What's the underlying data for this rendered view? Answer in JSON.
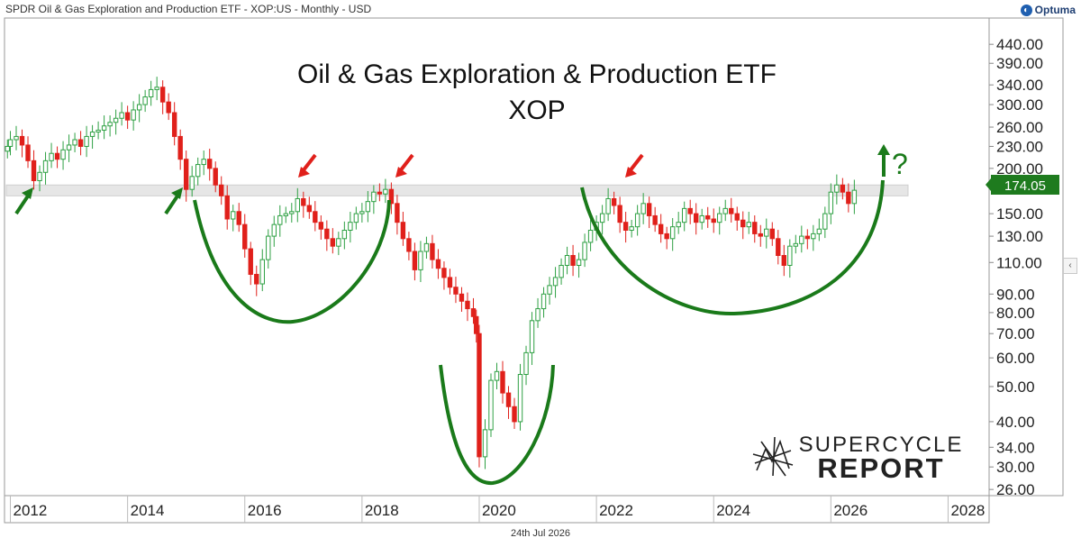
{
  "header": {
    "instrument": "SPDR Oil & Gas Exploration and Production ETF - XOP:US - Monthly - USD",
    "logo": "Optuma",
    "logo_icon": "optuma-logo-icon"
  },
  "footer": {
    "date": "24th Jul 2026"
  },
  "watermark": {
    "line1": "SUPERCYCLE",
    "line2": "REPORT"
  },
  "colors": {
    "up": "#2ea043",
    "down": "#e0201b",
    "annotation": "#1a7a1a",
    "arrow_red": "#e0201b",
    "price_box": "#1e7b1e"
  },
  "chart_data": {
    "type": "candlestick",
    "title": "Oil & Gas Exploration & Production ETF",
    "subtitle": "XOP",
    "scale": "log",
    "ylim": [
      25,
      520
    ],
    "xlim": [
      2011.9,
      2028.7
    ],
    "x_ticks": [
      "2012",
      "2014",
      "2016",
      "2018",
      "2020",
      "2022",
      "2024",
      "2026",
      "2028"
    ],
    "y_ticks": [
      "440.00",
      "390.00",
      "340.00",
      "300.00",
      "260.00",
      "230.00",
      "200.00",
      "174.05",
      "150.00",
      "130.00",
      "110.00",
      "90.00",
      "80.00",
      "70.00",
      "60.00",
      "50.00",
      "40.00",
      "34.00",
      "30.00",
      "26.00"
    ],
    "last_price": "174.05",
    "resistance_band": [
      168,
      180
    ],
    "annotation": "?",
    "series_close": [
      [
        2011.95,
        230
      ],
      [
        2012.0,
        240
      ],
      [
        2012.1,
        245
      ],
      [
        2012.2,
        232
      ],
      [
        2012.3,
        210
      ],
      [
        2012.4,
        185
      ],
      [
        2012.5,
        195
      ],
      [
        2012.6,
        210
      ],
      [
        2012.7,
        220
      ],
      [
        2012.8,
        212
      ],
      [
        2012.9,
        225
      ],
      [
        2013.0,
        232
      ],
      [
        2013.1,
        240
      ],
      [
        2013.2,
        230
      ],
      [
        2013.3,
        245
      ],
      [
        2013.4,
        252
      ],
      [
        2013.5,
        255
      ],
      [
        2013.6,
        262
      ],
      [
        2013.7,
        268
      ],
      [
        2013.8,
        275
      ],
      [
        2013.9,
        285
      ],
      [
        2014.0,
        272
      ],
      [
        2014.1,
        290
      ],
      [
        2014.2,
        300
      ],
      [
        2014.3,
        315
      ],
      [
        2014.4,
        330
      ],
      [
        2014.5,
        335
      ],
      [
        2014.6,
        305
      ],
      [
        2014.7,
        285
      ],
      [
        2014.8,
        245
      ],
      [
        2014.9,
        212
      ],
      [
        2015.0,
        175
      ],
      [
        2015.1,
        190
      ],
      [
        2015.2,
        205
      ],
      [
        2015.3,
        212
      ],
      [
        2015.4,
        200
      ],
      [
        2015.5,
        180
      ],
      [
        2015.6,
        168
      ],
      [
        2015.7,
        145
      ],
      [
        2015.8,
        152
      ],
      [
        2015.9,
        140
      ],
      [
        2016.0,
        120
      ],
      [
        2016.1,
        102
      ],
      [
        2016.2,
        96
      ],
      [
        2016.3,
        112
      ],
      [
        2016.4,
        130
      ],
      [
        2016.5,
        140
      ],
      [
        2016.6,
        148
      ],
      [
        2016.7,
        150
      ],
      [
        2016.8,
        152
      ],
      [
        2016.9,
        165
      ],
      [
        2017.0,
        158
      ],
      [
        2017.1,
        152
      ],
      [
        2017.2,
        142
      ],
      [
        2017.3,
        136
      ],
      [
        2017.4,
        128
      ],
      [
        2017.5,
        122
      ],
      [
        2017.6,
        128
      ],
      [
        2017.7,
        135
      ],
      [
        2017.8,
        142
      ],
      [
        2017.9,
        150
      ],
      [
        2018.0,
        152
      ],
      [
        2018.1,
        162
      ],
      [
        2018.2,
        172
      ],
      [
        2018.3,
        170
      ],
      [
        2018.4,
        175
      ],
      [
        2018.5,
        160
      ],
      [
        2018.6,
        142
      ],
      [
        2018.7,
        128
      ],
      [
        2018.8,
        118
      ],
      [
        2018.9,
        105
      ],
      [
        2019.0,
        118
      ],
      [
        2019.1,
        124
      ],
      [
        2019.2,
        112
      ],
      [
        2019.3,
        106
      ],
      [
        2019.4,
        100
      ],
      [
        2019.5,
        94
      ],
      [
        2019.6,
        90
      ],
      [
        2019.7,
        86
      ],
      [
        2019.8,
        82
      ],
      [
        2019.9,
        78
      ],
      [
        2019.95,
        70
      ],
      [
        2020.0,
        32
      ],
      [
        2020.1,
        38
      ],
      [
        2020.2,
        52
      ],
      [
        2020.3,
        55
      ],
      [
        2020.4,
        48
      ],
      [
        2020.5,
        44
      ],
      [
        2020.6,
        40
      ],
      [
        2020.7,
        54
      ],
      [
        2020.8,
        62
      ],
      [
        2020.9,
        76
      ],
      [
        2021.0,
        82
      ],
      [
        2021.1,
        90
      ],
      [
        2021.2,
        95
      ],
      [
        2021.3,
        100
      ],
      [
        2021.4,
        108
      ],
      [
        2021.5,
        115
      ],
      [
        2021.6,
        108
      ],
      [
        2021.7,
        112
      ],
      [
        2021.8,
        125
      ],
      [
        2021.9,
        135
      ],
      [
        2022.0,
        142
      ],
      [
        2022.1,
        150
      ],
      [
        2022.2,
        165
      ],
      [
        2022.3,
        158
      ],
      [
        2022.4,
        142
      ],
      [
        2022.5,
        135
      ],
      [
        2022.6,
        138
      ],
      [
        2022.7,
        150
      ],
      [
        2022.8,
        160
      ],
      [
        2022.9,
        148
      ],
      [
        2023.0,
        140
      ],
      [
        2023.1,
        132
      ],
      [
        2023.2,
        128
      ],
      [
        2023.3,
        138
      ],
      [
        2023.4,
        142
      ],
      [
        2023.5,
        155
      ],
      [
        2023.6,
        150
      ],
      [
        2023.7,
        142
      ],
      [
        2023.8,
        148
      ],
      [
        2023.9,
        145
      ],
      [
        2024.0,
        142
      ],
      [
        2024.1,
        150
      ],
      [
        2024.2,
        155
      ],
      [
        2024.3,
        150
      ],
      [
        2024.4,
        144
      ],
      [
        2024.5,
        138
      ],
      [
        2024.6,
        142
      ],
      [
        2024.7,
        132
      ],
      [
        2024.8,
        130
      ],
      [
        2024.9,
        136
      ],
      [
        2025.0,
        128
      ],
      [
        2025.1,
        115
      ],
      [
        2025.2,
        108
      ],
      [
        2025.3,
        122
      ],
      [
        2025.4,
        124
      ],
      [
        2025.5,
        130
      ],
      [
        2025.6,
        128
      ],
      [
        2025.7,
        132
      ],
      [
        2025.8,
        136
      ],
      [
        2025.9,
        150
      ],
      [
        2026.0,
        172
      ],
      [
        2026.1,
        180
      ],
      [
        2026.2,
        172
      ],
      [
        2026.3,
        160
      ],
      [
        2026.4,
        174.05
      ]
    ]
  }
}
